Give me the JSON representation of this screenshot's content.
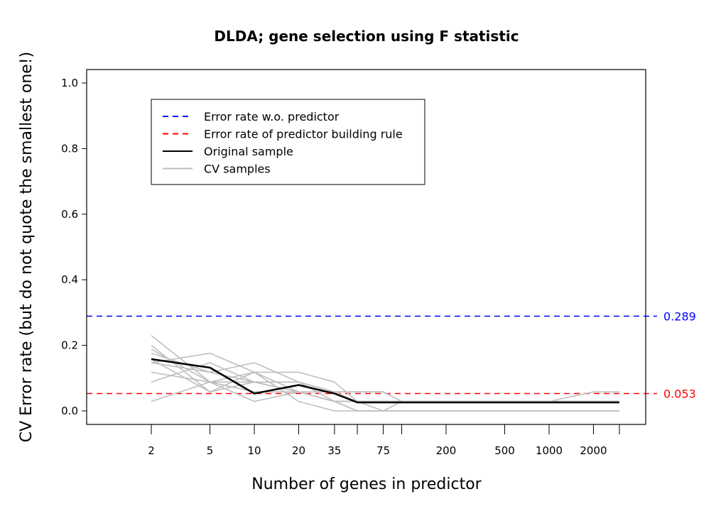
{
  "chart_data": {
    "type": "line",
    "title": "DLDA; gene selection using F statistic",
    "xlabel": "Number of genes in predictor",
    "ylabel": "CV Error rate (but do not quote the smallest one!)",
    "x_scale": "log",
    "x_ticks": [
      2,
      5,
      10,
      20,
      35,
      50,
      75,
      100,
      200,
      500,
      1000,
      2000,
      3000
    ],
    "x_tick_labels": [
      "2",
      "5",
      "10",
      "20",
      "35",
      "",
      "75",
      "",
      "200",
      "500",
      "1000",
      "2000",
      ""
    ],
    "ylim": [
      0,
      1.0
    ],
    "y_ticks": [
      0.0,
      0.2,
      0.4,
      0.6,
      0.8,
      1.0
    ],
    "y_tick_labels": [
      "0.0",
      "0.2",
      "0.4",
      "0.6",
      "0.8",
      "1.0"
    ],
    "x": [
      2,
      5,
      10,
      20,
      35,
      50,
      75,
      100,
      200,
      500,
      1000,
      2000,
      3000
    ],
    "series": [
      {
        "name": "Original sample",
        "color": "#000000",
        "values": [
          0.158,
          0.132,
          0.053,
          0.079,
          0.053,
          0.026,
          0.026,
          0.026,
          0.026,
          0.026,
          0.026,
          0.026,
          0.026
        ]
      },
      {
        "name": "CV samples",
        "color": "#bebebe",
        "values": [
          0.23,
          0.088,
          0.088,
          0.088,
          0.058,
          0.058,
          0.058,
          0.029,
          0.029,
          0.029,
          0.029,
          0.058,
          0.058
        ]
      },
      {
        "name": "CV samples",
        "color": "#bebebe",
        "values": [
          0.2,
          0.058,
          0.088,
          0.058,
          0.029,
          0.0,
          0.0,
          0.029,
          0.029,
          0.029,
          0.029,
          0.029,
          0.029
        ]
      },
      {
        "name": "CV samples",
        "color": "#bebebe",
        "values": [
          0.176,
          0.118,
          0.147,
          0.088,
          0.029,
          0.029,
          0.029,
          0.029,
          0.029,
          0.029,
          0.029,
          0.029,
          0.029
        ]
      },
      {
        "name": "CV samples",
        "color": "#bebebe",
        "values": [
          0.147,
          0.176,
          0.118,
          0.118,
          0.088,
          0.029,
          0.029,
          0.029,
          0.029,
          0.029,
          0.029,
          0.029,
          0.029
        ]
      },
      {
        "name": "CV samples",
        "color": "#bebebe",
        "values": [
          0.118,
          0.088,
          0.058,
          0.058,
          0.029,
          0.029,
          0.0,
          0.0,
          0.0,
          0.0,
          0.0,
          0.0,
          0.0
        ]
      },
      {
        "name": "CV samples",
        "color": "#bebebe",
        "values": [
          0.088,
          0.147,
          0.088,
          0.058,
          0.029,
          0.0,
          0.0,
          0.0,
          0.0,
          0.0,
          0.0,
          0.0,
          0.0
        ]
      },
      {
        "name": "CV samples",
        "color": "#bebebe",
        "values": [
          0.029,
          0.088,
          0.029,
          0.058,
          0.058,
          0.058,
          0.058,
          0.029,
          0.029,
          0.029,
          0.029,
          0.029,
          0.029
        ]
      },
      {
        "name": "CV samples",
        "color": "#bebebe",
        "values": [
          0.158,
          0.058,
          0.118,
          0.029,
          0.0,
          0.0,
          0.0,
          0.0,
          0.0,
          0.0,
          0.0,
          0.0,
          0.0
        ]
      },
      {
        "name": "CV samples",
        "color": "#bebebe",
        "values": [
          0.147,
          0.118,
          0.088,
          0.088,
          0.058,
          0.029,
          0.029,
          0.029,
          0.029,
          0.029,
          0.029,
          0.029,
          0.029
        ]
      },
      {
        "name": "CV samples",
        "color": "#bebebe",
        "values": [
          0.188,
          0.088,
          0.118,
          0.058,
          0.029,
          0.029,
          0.029,
          0.029,
          0.029,
          0.029,
          0.029,
          0.029,
          0.029
        ]
      }
    ],
    "reference_lines": [
      {
        "name": "Error rate w.o. predictor",
        "value": 0.289,
        "label": "0.289",
        "color": "#0000ff",
        "style": "dashed"
      },
      {
        "name": "Error rate of predictor building rule",
        "value": 0.053,
        "label": "0.053",
        "color": "#ff0000",
        "style": "dashed"
      }
    ],
    "legend": {
      "position": "top-left",
      "entries": [
        {
          "label": "Error rate w.o. predictor",
          "color": "#0000ff",
          "style": "dashed"
        },
        {
          "label": "Error rate of predictor building rule",
          "color": "#ff0000",
          "style": "dashed"
        },
        {
          "label": "Original sample",
          "color": "#000000",
          "style": "solid"
        },
        {
          "label": "CV samples",
          "color": "#bebebe",
          "style": "solid"
        }
      ]
    },
    "grid": false
  }
}
